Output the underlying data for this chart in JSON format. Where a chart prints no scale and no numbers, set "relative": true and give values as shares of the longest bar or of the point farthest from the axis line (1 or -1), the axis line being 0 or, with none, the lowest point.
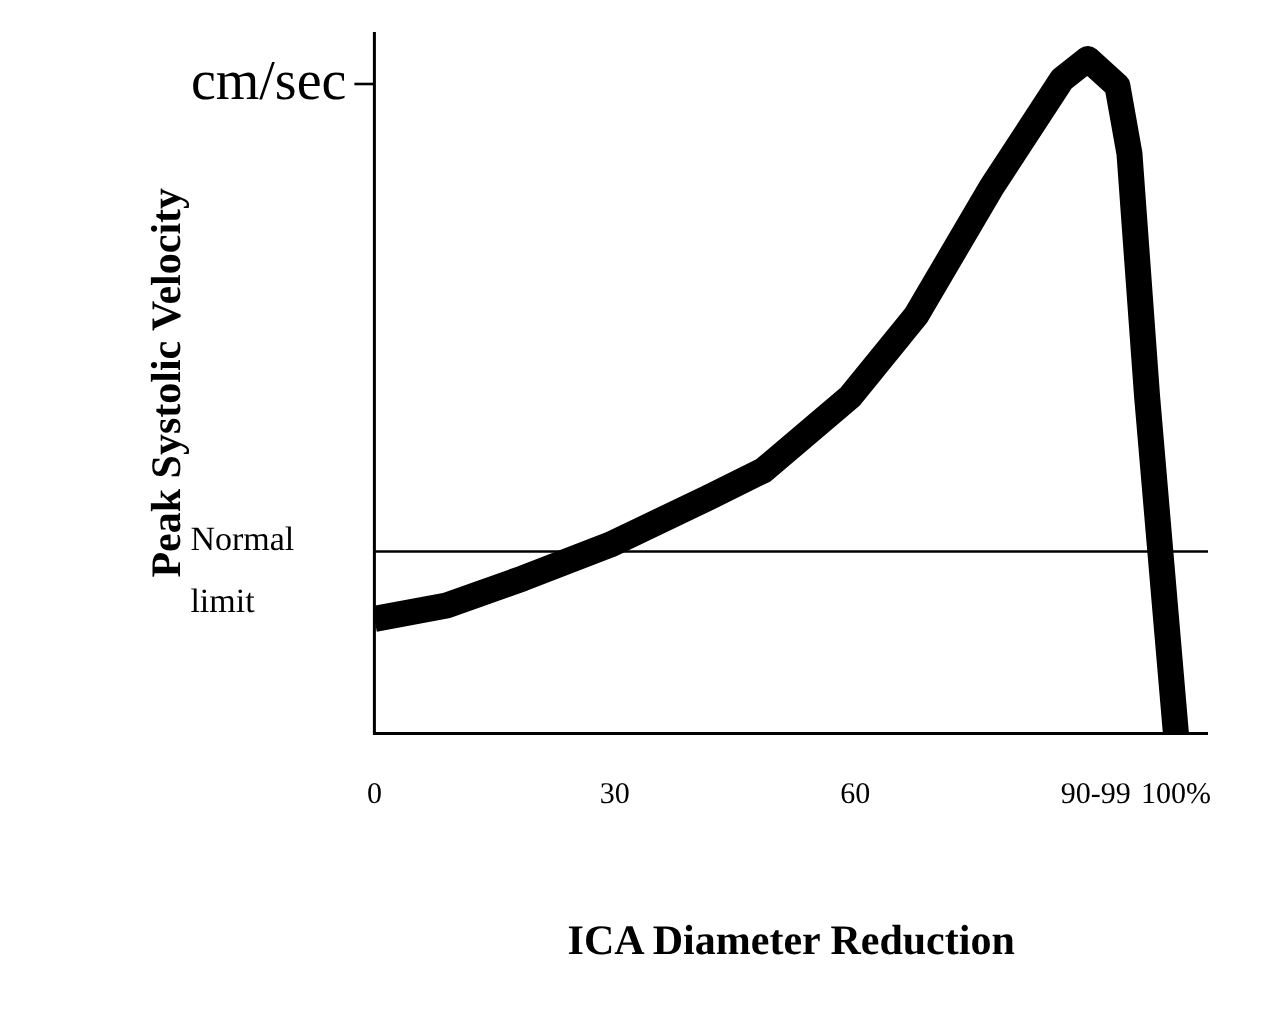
{
  "chart_data": {
    "type": "line",
    "relative": true,
    "xlabel": "ICA Diameter Reduction",
    "ylabel": "Peak Systolic Velocity",
    "annotations": [
      "cm/sec"
    ],
    "xlim": [
      0,
      104
    ],
    "xticks": [
      0,
      30,
      60,
      {
        "value": 90,
        "label": "90-99"
      },
      {
        "value": 100,
        "label": "100%"
      }
    ],
    "series": [
      {
        "color": "#000000",
        "x": [
          0,
          9,
          18.5,
          29.4,
          41.7,
          48.5,
          59.4,
          67.6,
          77,
          85.8,
          89,
          92.7,
          94.2,
          96.4,
          98.7,
          100
        ],
        "values": [
          0.17,
          0.19,
          0.23,
          0.28,
          0.35,
          0.39,
          0.5,
          0.62,
          0.81,
          0.97,
          1,
          0.96,
          0.86,
          0.5,
          0.18,
          0
        ]
      }
    ],
    "ref_lines": [
      {
        "axis": "y",
        "value": 0.27,
        "label": "Normal limit",
        "color": "#000000"
      }
    ],
    "marker": "none",
    "line_style": "solid",
    "grid": false,
    "legend": false
  }
}
